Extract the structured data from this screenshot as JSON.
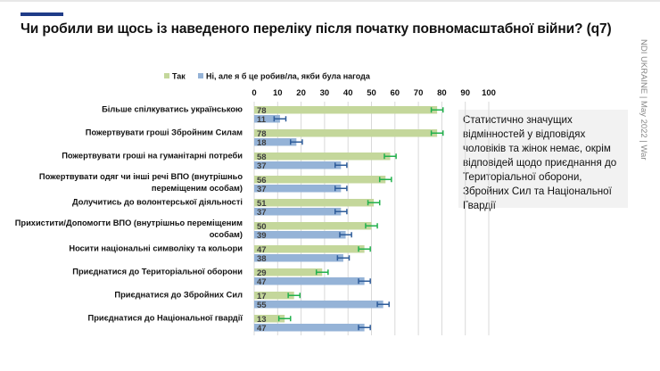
{
  "title": "Чи робили ви щось із наведеного переліку після початку повномасштабної війни? (q7)",
  "side_text": "NDI UKRAINE | May 2022 | War",
  "note": "Статистично значущих відмінностей у відповідях чоловіків та жінок немає, окрім відповідей щодо приєднання до Територіальної оборони, Збройних Сил та Національної Гвардії",
  "chart_data": {
    "type": "bar",
    "orientation": "horizontal",
    "xlim": [
      0,
      100
    ],
    "xticks": [
      "0",
      "10",
      "20",
      "30",
      "40",
      "50",
      "60",
      "70",
      "80",
      "90",
      "100"
    ],
    "grid": true,
    "legend_position": "top",
    "categories": [
      [
        "Більше спілкуватись українською"
      ],
      [
        "Пожертвувати гроші Збройним Силам"
      ],
      [
        "Пожертвувати гроші на гуманітарні потреби"
      ],
      [
        "Пожертвувати одяг чи інші речі ВПО (внутрішньо",
        "переміщеним особам)"
      ],
      [
        "Долучитись до волонтерської діяльності"
      ],
      [
        "Прихистити/Допомогти ВПО (внутрішньо переміщеним",
        "особам)"
      ],
      [
        "Носити національні символіку та кольори"
      ],
      [
        "Приєднатися до Територіальної оборони"
      ],
      [
        "Приєднатися до Збройних Сил"
      ],
      [
        "Приєднатися до Національної гвардії"
      ]
    ],
    "series": [
      {
        "name": "Так",
        "color": "#c4d79b",
        "error_color": "#22b14c",
        "values": [
          78,
          78,
          58,
          56,
          51,
          50,
          47,
          29,
          17,
          13
        ]
      },
      {
        "name": "Ні, але я б це робив/ла, якби була нагода",
        "color": "#95b3d7",
        "error_color": "#2e5c9a",
        "values": [
          11,
          18,
          37,
          37,
          37,
          39,
          38,
          47,
          55,
          47
        ]
      }
    ],
    "error_margin": 2.5
  }
}
